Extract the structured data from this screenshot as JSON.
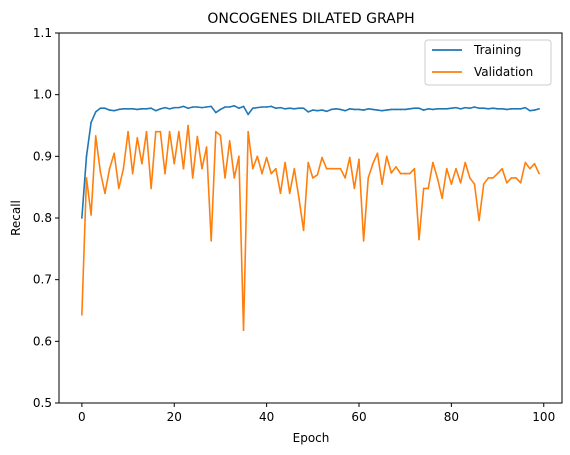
{
  "chart_data": {
    "type": "line",
    "title": "ONCOGENES DILATED GRAPH",
    "xlabel": "Epoch",
    "ylabel": "Recall",
    "xlim": [
      -4.95,
      103.95
    ],
    "ylim": [
      0.5,
      1.1
    ],
    "xticks": [
      0,
      20,
      40,
      60,
      80,
      100
    ],
    "yticks": [
      0.5,
      0.6,
      0.7,
      0.8,
      0.9,
      1.0,
      1.1
    ],
    "ytick_labels": [
      "0.5",
      "0.6",
      "0.7",
      "0.8",
      "0.9",
      "1.0",
      "1.1"
    ],
    "legend_position": "upper right",
    "grid": false,
    "series": [
      {
        "name": "Training",
        "color": "#1f77b4",
        "x": [
          0,
          1,
          2,
          3,
          4,
          5,
          6,
          7,
          8,
          9,
          10,
          11,
          12,
          13,
          14,
          15,
          16,
          17,
          18,
          19,
          20,
          21,
          22,
          23,
          24,
          25,
          26,
          27,
          28,
          29,
          30,
          31,
          32,
          33,
          34,
          35,
          36,
          37,
          38,
          39,
          40,
          41,
          42,
          43,
          44,
          45,
          46,
          47,
          48,
          49,
          50,
          51,
          52,
          53,
          54,
          55,
          56,
          57,
          58,
          59,
          60,
          61,
          62,
          63,
          64,
          65,
          66,
          67,
          68,
          69,
          70,
          71,
          72,
          73,
          74,
          75,
          76,
          77,
          78,
          79,
          80,
          81,
          82,
          83,
          84,
          85,
          86,
          87,
          88,
          89,
          90,
          91,
          92,
          93,
          94,
          95,
          96,
          97,
          98,
          99
        ],
        "values": [
          0.8,
          0.9,
          0.955,
          0.972,
          0.978,
          0.978,
          0.975,
          0.974,
          0.976,
          0.977,
          0.977,
          0.977,
          0.976,
          0.977,
          0.977,
          0.978,
          0.974,
          0.977,
          0.979,
          0.977,
          0.979,
          0.979,
          0.981,
          0.978,
          0.98,
          0.98,
          0.979,
          0.98,
          0.981,
          0.971,
          0.976,
          0.98,
          0.98,
          0.982,
          0.978,
          0.981,
          0.968,
          0.978,
          0.979,
          0.98,
          0.98,
          0.981,
          0.978,
          0.979,
          0.977,
          0.978,
          0.977,
          0.978,
          0.978,
          0.972,
          0.975,
          0.974,
          0.975,
          0.973,
          0.976,
          0.977,
          0.976,
          0.974,
          0.977,
          0.976,
          0.976,
          0.975,
          0.977,
          0.976,
          0.975,
          0.974,
          0.975,
          0.976,
          0.976,
          0.976,
          0.976,
          0.977,
          0.978,
          0.978,
          0.975,
          0.977,
          0.976,
          0.977,
          0.977,
          0.977,
          0.978,
          0.979,
          0.977,
          0.979,
          0.978,
          0.98,
          0.978,
          0.978,
          0.977,
          0.978,
          0.977,
          0.977,
          0.976,
          0.977,
          0.977,
          0.977,
          0.979,
          0.974,
          0.975,
          0.977
        ]
      },
      {
        "name": "Validation",
        "color": "#ff7f0e",
        "x": [
          0,
          1,
          2,
          3,
          4,
          5,
          6,
          7,
          8,
          9,
          10,
          11,
          12,
          13,
          14,
          15,
          16,
          17,
          18,
          19,
          20,
          21,
          22,
          23,
          24,
          25,
          26,
          27,
          28,
          29,
          30,
          31,
          32,
          33,
          34,
          35,
          36,
          37,
          38,
          39,
          40,
          41,
          42,
          43,
          44,
          45,
          46,
          47,
          48,
          49,
          50,
          51,
          52,
          53,
          54,
          55,
          56,
          57,
          58,
          59,
          60,
          61,
          62,
          63,
          64,
          65,
          66,
          67,
          68,
          69,
          70,
          71,
          72,
          73,
          74,
          75,
          76,
          77,
          78,
          79,
          80,
          81,
          82,
          83,
          84,
          85,
          86,
          87,
          88,
          89,
          90,
          91,
          92,
          93,
          94,
          95,
          96,
          97,
          98,
          99
        ],
        "values": [
          0.643,
          0.865,
          0.805,
          0.933,
          0.875,
          0.84,
          0.88,
          0.905,
          0.848,
          0.88,
          0.94,
          0.872,
          0.93,
          0.888,
          0.94,
          0.848,
          0.94,
          0.94,
          0.872,
          0.94,
          0.888,
          0.94,
          0.88,
          0.95,
          0.865,
          0.932,
          0.88,
          0.915,
          0.763,
          0.94,
          0.934,
          0.865,
          0.925,
          0.865,
          0.9,
          0.618,
          0.94,
          0.88,
          0.9,
          0.872,
          0.898,
          0.872,
          0.88,
          0.84,
          0.89,
          0.84,
          0.88,
          0.832,
          0.78,
          0.89,
          0.865,
          0.87,
          0.898,
          0.88,
          0.88,
          0.88,
          0.88,
          0.865,
          0.898,
          0.848,
          0.895,
          0.763,
          0.865,
          0.888,
          0.905,
          0.855,
          0.9,
          0.873,
          0.883,
          0.872,
          0.872,
          0.872,
          0.88,
          0.765,
          0.848,
          0.848,
          0.89,
          0.864,
          0.832,
          0.88,
          0.855,
          0.88,
          0.857,
          0.89,
          0.865,
          0.855,
          0.796,
          0.855,
          0.865,
          0.865,
          0.872,
          0.88,
          0.857,
          0.865,
          0.865,
          0.857,
          0.89,
          0.88,
          0.888,
          0.872
        ]
      }
    ]
  }
}
